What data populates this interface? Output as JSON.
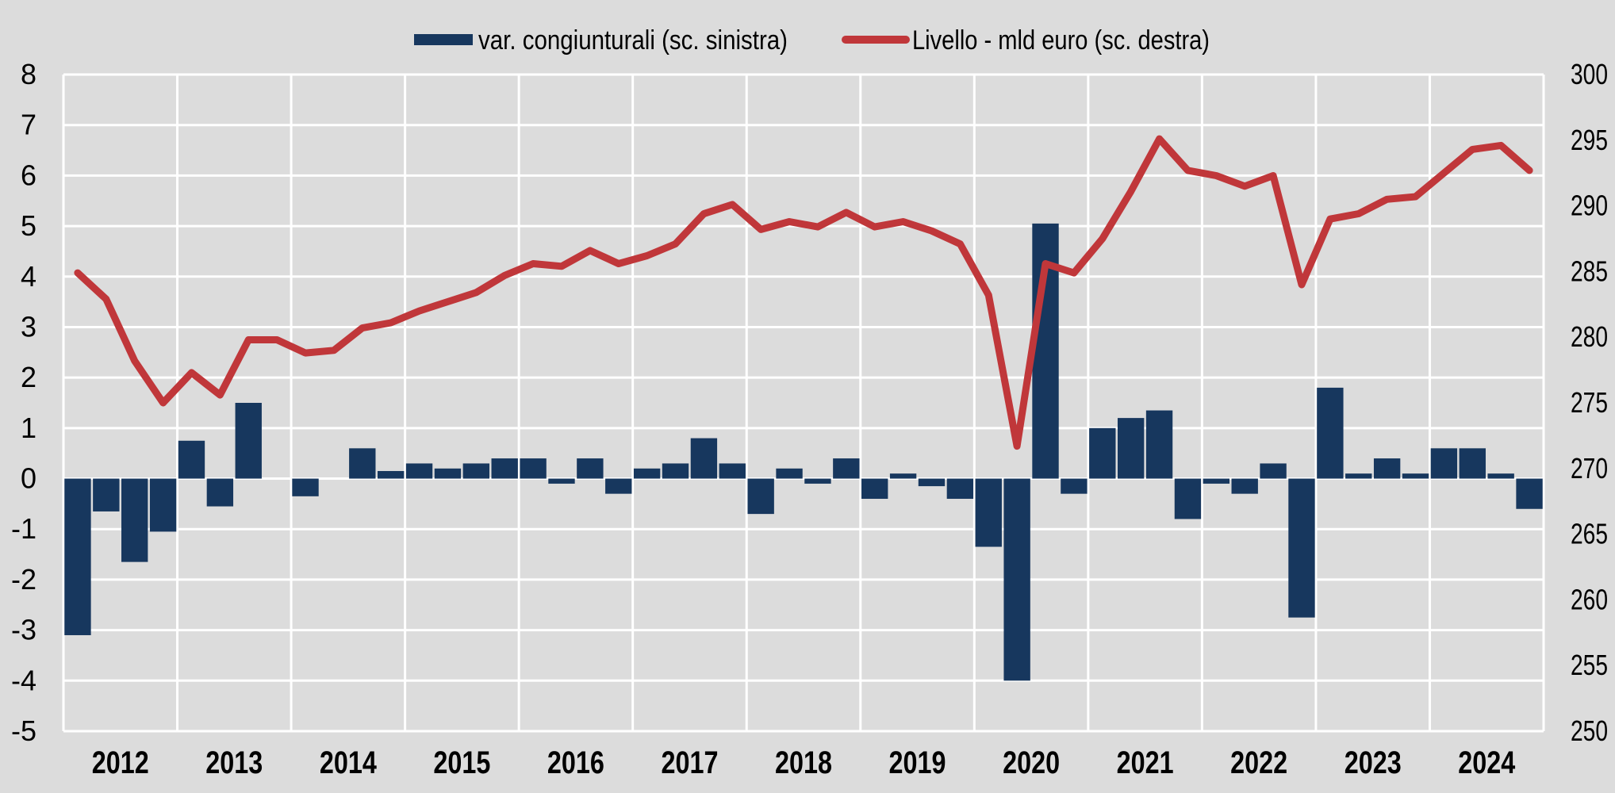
{
  "chart_data": {
    "type": "bar+line",
    "title": "",
    "legend": {
      "placement": "top-center",
      "entries": [
        {
          "name": "var. congiunturali (sc. sinistra)",
          "type": "bar",
          "color": "#17375e"
        },
        {
          "name": "Livello - mld euro (sc. destra)",
          "type": "line",
          "color": "#c0373a"
        }
      ]
    },
    "x": {
      "categories": [
        "2012",
        "2013",
        "2014",
        "2015",
        "2016",
        "2017",
        "2018",
        "2019",
        "2020",
        "2021",
        "2022",
        "2023",
        "2024"
      ],
      "periods_per_category": 4,
      "periods": [
        "2012Q1",
        "2012Q2",
        "2012Q3",
        "2012Q4",
        "2013Q1",
        "2013Q2",
        "2013Q3",
        "2013Q4",
        "2014Q1",
        "2014Q2",
        "2014Q3",
        "2014Q4",
        "2015Q1",
        "2015Q2",
        "2015Q3",
        "2015Q4",
        "2016Q1",
        "2016Q2",
        "2016Q3",
        "2016Q4",
        "2017Q1",
        "2017Q2",
        "2017Q3",
        "2017Q4",
        "2018Q1",
        "2018Q2",
        "2018Q3",
        "2018Q4",
        "2019Q1",
        "2019Q2",
        "2019Q3",
        "2019Q4",
        "2020Q1",
        "2020Q2",
        "2020Q3",
        "2020Q4",
        "2021Q1",
        "2021Q2",
        "2021Q3",
        "2021Q4",
        "2022Q1",
        "2022Q2",
        "2022Q3",
        "2022Q4",
        "2023Q1",
        "2023Q2",
        "2023Q3",
        "2023Q4",
        "2024Q1",
        "2024Q2",
        "2024Q3",
        "2024Q4"
      ]
    },
    "y_left": {
      "label": "",
      "ylim": [
        -5,
        8
      ],
      "ticks": [
        8,
        7,
        6,
        5,
        4,
        3,
        2,
        1,
        0,
        -1,
        -2,
        -3,
        -4,
        -5
      ]
    },
    "y_right": {
      "label": "",
      "ylim": [
        250,
        300
      ],
      "ticks": [
        300,
        295,
        290,
        285,
        280,
        275,
        270,
        265,
        260,
        255,
        250
      ]
    },
    "grid": true,
    "series": [
      {
        "name": "var. congiunturali (sc. sinistra)",
        "type": "bar",
        "axis": "left",
        "color": "#17375e",
        "values": [
          -3.1,
          -0.65,
          -1.65,
          -1.05,
          0.75,
          -0.55,
          1.5,
          0.0,
          -0.35,
          0.0,
          0.6,
          0.15,
          0.3,
          0.2,
          0.3,
          0.4,
          0.4,
          -0.1,
          0.4,
          -0.3,
          0.2,
          0.3,
          0.8,
          0.3,
          -0.7,
          0.2,
          -0.1,
          0.4,
          -0.4,
          0.1,
          -0.15,
          -0.4,
          -1.35,
          -4.0,
          5.05,
          -0.3,
          1.0,
          1.2,
          1.35,
          -0.8,
          -0.1,
          -0.3,
          0.3,
          -2.75,
          1.8,
          0.1,
          0.4,
          0.1,
          0.6,
          0.6,
          0.1,
          -0.6
        ]
      },
      {
        "name": "Livello - mld euro (sc. destra)",
        "type": "line",
        "axis": "right",
        "color": "#c0373a",
        "values": [
          284.9,
          282.9,
          278.2,
          275.0,
          277.3,
          275.6,
          279.8,
          279.8,
          278.8,
          279.0,
          280.7,
          281.1,
          282.0,
          282.7,
          283.4,
          284.7,
          285.6,
          285.4,
          286.6,
          285.6,
          286.2,
          287.1,
          289.4,
          290.1,
          288.2,
          288.8,
          288.4,
          289.5,
          288.4,
          288.8,
          288.1,
          287.1,
          283.2,
          271.7,
          285.6,
          284.9,
          287.5,
          291.1,
          295.1,
          292.7,
          292.3,
          291.5,
          292.3,
          284.0,
          289.0,
          289.4,
          290.5,
          290.7,
          292.5,
          294.3,
          294.6,
          292.7
        ]
      }
    ]
  }
}
